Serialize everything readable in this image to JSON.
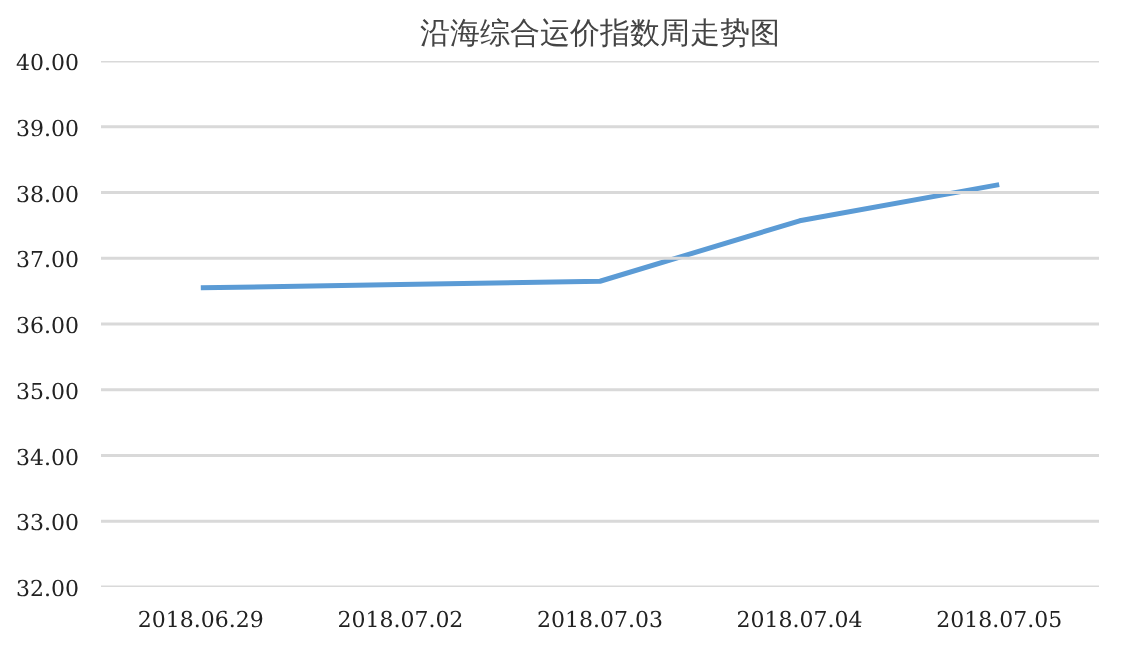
{
  "chart_data": {
    "type": "line",
    "title": "沿海综合运价指数周走势图",
    "categories": [
      "2018.06.29",
      "2018.07.02",
      "2018.07.03",
      "2018.07.04",
      "2018.07.05"
    ],
    "series": [
      {
        "color": "#5b9bd5",
        "values": [
          36.55,
          36.6,
          36.65,
          37.57,
          38.12
        ]
      }
    ],
    "ylim": [
      32,
      40
    ],
    "yticks": [
      {
        "value": 32,
        "label": "32.00"
      },
      {
        "value": 33,
        "label": "33.00"
      },
      {
        "value": 34,
        "label": "34.00"
      },
      {
        "value": 35,
        "label": "35.00"
      },
      {
        "value": 36,
        "label": "36.00"
      },
      {
        "value": 37,
        "label": "37.00"
      },
      {
        "value": 38,
        "label": "38.00"
      },
      {
        "value": 39,
        "label": "39.00"
      },
      {
        "value": 40,
        "label": "40.00"
      }
    ],
    "grid": "y",
    "marker": "none",
    "line_style": "solid"
  }
}
